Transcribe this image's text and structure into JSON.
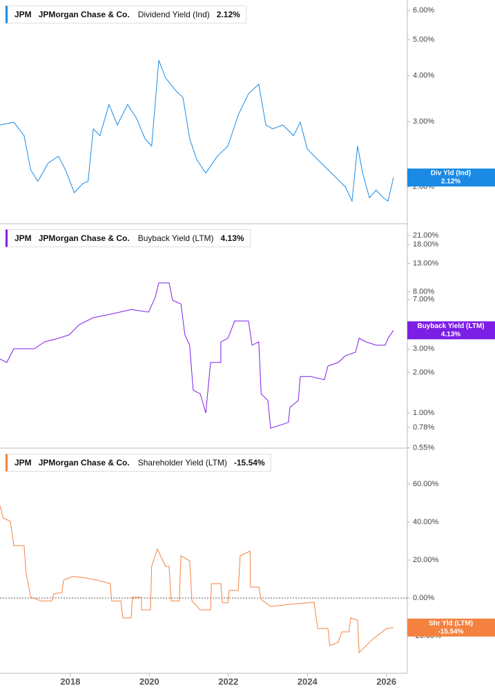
{
  "chart_data": [
    {
      "type": "line",
      "ticker": "JPM",
      "company": "JPMorgan Chase & Co.",
      "log": true,
      "xlim": [
        2016.22,
        2026.53
      ],
      "ylim": [
        1.59,
        6.4
      ],
      "yticks": [
        {
          "value": 2,
          "label": "2.00%"
        },
        {
          "value": 3,
          "label": "3.00%"
        },
        {
          "value": 4,
          "label": "4.00%"
        },
        {
          "value": 5,
          "label": "5.00%"
        },
        {
          "value": 6,
          "label": "6.00%"
        }
      ],
      "x": [
        2016.22,
        2016.57,
        2016.83,
        2017.0,
        2017.18,
        2017.44,
        2017.7,
        2017.88,
        2018.1,
        2018.31,
        2018.45,
        2018.58,
        2018.75,
        2018.98,
        2019.19,
        2019.45,
        2019.68,
        2019.89,
        2020.06,
        2020.24,
        2020.41,
        2020.67,
        2020.85,
        2021.02,
        2021.2,
        2021.43,
        2021.72,
        2021.99,
        2022.25,
        2022.51,
        2022.77,
        2022.95,
        2023.12,
        2023.38,
        2023.65,
        2023.82,
        2024.0,
        2024.26,
        2024.61,
        2024.96,
        2025.13,
        2025.27,
        2025.4,
        2025.57,
        2025.74,
        2025.92,
        2026.04,
        2026.18
      ],
      "series": [
        {
          "name": "Dividend Yield (Ind)",
          "tag": "Div Yld (Ind)",
          "color": "#1a8ae5",
          "values": [
            2.94,
            2.99,
            2.75,
            2.22,
            2.07,
            2.32,
            2.42,
            2.22,
            1.93,
            2.04,
            2.07,
            2.87,
            2.75,
            3.34,
            2.94,
            3.34,
            3.06,
            2.7,
            2.58,
            4.4,
            3.94,
            3.64,
            3.49,
            2.7,
            2.37,
            2.18,
            2.42,
            2.58,
            3.13,
            3.57,
            3.79,
            2.94,
            2.87,
            2.94,
            2.75,
            2.99,
            2.53,
            2.37,
            2.18,
            2.0,
            1.83,
            2.58,
            2.18,
            1.87,
            1.96,
            1.87,
            1.83,
            2.12
          ],
          "latest": {
            "value": 2.12,
            "label": "2.12%"
          }
        }
      ]
    },
    {
      "type": "line",
      "ticker": "JPM",
      "company": "JPMorgan Chase & Co.",
      "log": true,
      "xlim": [
        2016.22,
        2026.53
      ],
      "ylim": [
        0.547,
        25.7
      ],
      "yticks": [
        {
          "value": 0.55,
          "label": "0.55%"
        },
        {
          "value": 0.78,
          "label": "0.78%"
        },
        {
          "value": 1,
          "label": "1.00%"
        },
        {
          "value": 2,
          "label": "2.00%"
        },
        {
          "value": 3,
          "label": "3.00%"
        },
        {
          "value": 7,
          "label": "7.00%"
        },
        {
          "value": 8,
          "label": "8.00%"
        },
        {
          "value": 13,
          "label": "13.00%"
        },
        {
          "value": 18,
          "label": "18.00%"
        },
        {
          "value": 21,
          "label": "21.00%"
        }
      ],
      "x": [
        2016.22,
        2016.39,
        2016.57,
        2016.83,
        2017.09,
        2017.35,
        2017.7,
        2017.97,
        2018.23,
        2018.58,
        2019.01,
        2019.54,
        2019.98,
        2020.15,
        2020.24,
        2020.5,
        2020.59,
        2020.8,
        2020.9,
        2021.02,
        2021.11,
        2021.29,
        2021.43,
        2021.55,
        2021.81,
        2021.81,
        2021.99,
        2022.16,
        2022.51,
        2022.6,
        2022.77,
        2022.83,
        2023.0,
        2023.07,
        2023.52,
        2023.56,
        2023.77,
        2023.82,
        2024.08,
        2024.43,
        2024.52,
        2024.78,
        2024.96,
        2025.22,
        2025.31,
        2025.48,
        2025.74,
        2025.97,
        2026.04,
        2026.18
      ],
      "series": [
        {
          "name": "Buyback Yield (LTM)",
          "tag": "Buyback Yield (LTM)",
          "color": "#7c1ee6",
          "values": [
            2.52,
            2.38,
            3.01,
            3.01,
            3.01,
            3.39,
            3.6,
            3.82,
            4.56,
            5.13,
            5.44,
            5.9,
            5.64,
            7.3,
            9.3,
            9.3,
            6.9,
            6.5,
            3.82,
            3.2,
            1.48,
            1.39,
            1.0,
            2.38,
            2.38,
            3.39,
            3.6,
            4.84,
            4.84,
            3.2,
            3.39,
            1.39,
            1.24,
            0.77,
            0.85,
            1.1,
            1.24,
            1.87,
            1.87,
            1.77,
            2.24,
            2.38,
            2.67,
            2.84,
            3.6,
            3.39,
            3.2,
            3.2,
            3.6,
            4.13
          ],
          "latest": {
            "value": 4.13,
            "label": "4.13%"
          }
        }
      ]
    },
    {
      "type": "line",
      "ticker": "JPM",
      "company": "JPMorgan Chase & Co.",
      "log": false,
      "zero_line": true,
      "xlim": [
        2016.22,
        2026.53
      ],
      "ylim": [
        -39.6,
        78.9
      ],
      "xticks": [
        2018,
        2020,
        2022,
        2024,
        2026
      ],
      "yticks": [
        {
          "value": -20,
          "label": "-20.00%"
        },
        {
          "value": 0,
          "label": "0.00%"
        },
        {
          "value": 20,
          "label": "20.00%"
        },
        {
          "value": 40,
          "label": "40.00%"
        },
        {
          "value": 60,
          "label": "60.00%"
        }
      ],
      "x": [
        2016.22,
        2016.3,
        2016.48,
        2016.57,
        2016.83,
        2016.88,
        2017.0,
        2017.27,
        2017.53,
        2017.58,
        2017.79,
        2017.83,
        2018.05,
        2018.31,
        2018.66,
        2019.01,
        2019.05,
        2019.28,
        2019.33,
        2019.54,
        2019.57,
        2019.8,
        2019.8,
        2020.03,
        2020.06,
        2020.2,
        2020.41,
        2020.5,
        2020.55,
        2020.76,
        2020.8,
        2021.02,
        2021.08,
        2021.29,
        2021.55,
        2021.57,
        2021.81,
        2021.85,
        2021.99,
        2022.02,
        2022.25,
        2022.3,
        2022.55,
        2022.56,
        2022.77,
        2022.83,
        2023.07,
        2023.56,
        2024.17,
        2024.26,
        2024.52,
        2024.57,
        2024.78,
        2024.87,
        2025.05,
        2025.1,
        2025.27,
        2025.31,
        2025.66,
        2026.01,
        2026.18
      ],
      "series": [
        {
          "name": "Shareholder Yield (LTM)",
          "tag": "Shr Yld (LTM)",
          "color": "#f4813f",
          "values": [
            48.7,
            42.2,
            40.4,
            27.6,
            27.6,
            13.1,
            0.4,
            -1.5,
            -1.5,
            2.2,
            2.9,
            9.5,
            11.3,
            10.9,
            9.5,
            7.6,
            -1.5,
            -1.5,
            -10.5,
            -10.5,
            0.4,
            0.4,
            -6.2,
            -6.2,
            16.7,
            25.8,
            16.7,
            16.7,
            -1.5,
            -1.5,
            22.2,
            19.6,
            -1.5,
            -6.2,
            -6.2,
            7.6,
            7.6,
            -2.5,
            -2.5,
            4.0,
            4.0,
            22.2,
            24.7,
            5.8,
            5.8,
            -0.7,
            -4.4,
            -3.3,
            -2.2,
            -16.0,
            -16.0,
            -25.1,
            -23.3,
            -17.8,
            -17.8,
            -10.5,
            -11.6,
            -28.7,
            -21.5,
            -16.0,
            -15.54
          ],
          "latest": {
            "value": -15.54,
            "label": "-15.54%"
          }
        }
      ]
    }
  ]
}
